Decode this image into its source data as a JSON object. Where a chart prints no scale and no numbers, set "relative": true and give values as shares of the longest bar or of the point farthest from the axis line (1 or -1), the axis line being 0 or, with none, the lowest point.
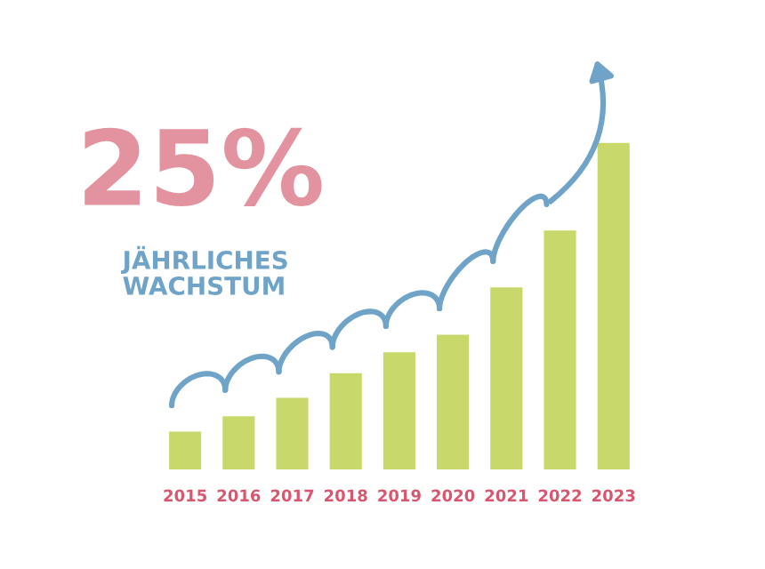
{
  "chart_data": {
    "type": "bar",
    "title": "25%",
    "subtitle": "JÄHRLICHES\nWACHSTUM",
    "categories": [
      "2015",
      "2016",
      "2017",
      "2018",
      "2019",
      "2020",
      "2021",
      "2022",
      "2023"
    ],
    "values": [
      0.116,
      0.163,
      0.219,
      0.295,
      0.359,
      0.413,
      0.558,
      0.732,
      1
    ],
    "color": "#c8d86a",
    "relative": true,
    "grid": false,
    "legend": false
  }
}
